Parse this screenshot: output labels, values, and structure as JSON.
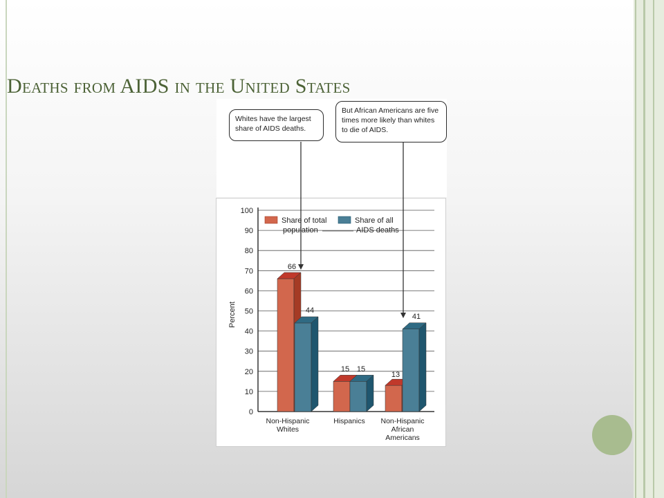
{
  "slide": {
    "title": "Deaths from AIDS in the United States",
    "accent_color": "#4c6236",
    "decoration_color": "#a8bc8f"
  },
  "callouts": {
    "left": "Whites have the largest share of AIDS deaths.",
    "right": "But African Americans are five times more likely than whites to die of AIDS."
  },
  "chart_data": {
    "type": "bar",
    "style": "3d grouped bar",
    "categories": [
      [
        "Non-Hispanic",
        "Whites"
      ],
      [
        "Hispanics"
      ],
      [
        "Non-Hispanic",
        "African",
        "Americans"
      ]
    ],
    "series": [
      {
        "name": [
          "Share of total",
          "population"
        ],
        "values": [
          66,
          15,
          13
        ],
        "color": "#d2674d",
        "top_color": "#c0392b",
        "side_color": "#a53b25"
      },
      {
        "name": [
          "Share of all",
          "AIDS deaths"
        ],
        "values": [
          44,
          15,
          41
        ],
        "color": "#4a7f96",
        "top_color": "#2f6a83",
        "side_color": "#1f566e"
      }
    ],
    "data_labels": [
      [
        "66",
        "15",
        "13"
      ],
      [
        "44",
        "15",
        "41"
      ]
    ],
    "ylabel": "Percent",
    "xlabel": "",
    "ylim": [
      0,
      100
    ],
    "yticks": [
      0,
      10,
      20,
      30,
      40,
      50,
      60,
      70,
      80,
      90,
      100
    ],
    "grid": true,
    "legend_position": "top"
  }
}
